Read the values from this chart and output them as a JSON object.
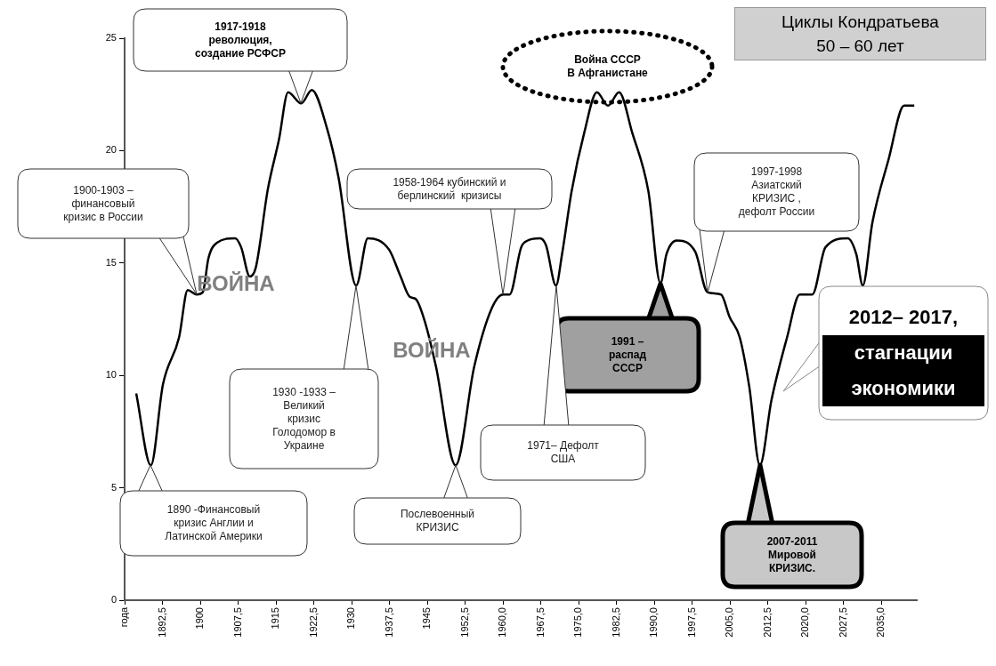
{
  "chart_data": {
    "type": "line",
    "title": "Циклы Кондратьева\n50 – 60 лет",
    "xlim": [
      1885,
      2042
    ],
    "xticks": [
      {
        "value": 1885,
        "label": "года"
      },
      {
        "value": 1892.5,
        "label": "1892,5"
      },
      1900,
      {
        "value": 1907.5,
        "label": "1907,5"
      },
      1915,
      {
        "value": 1922.5,
        "label": "1922,5"
      },
      1930,
      {
        "value": 1937.5,
        "label": "1937,5"
      },
      1945,
      {
        "value": 1952.5,
        "label": "1952,5"
      },
      {
        "value": 1960,
        "label": "1960,0"
      },
      {
        "value": 1967.5,
        "label": "1967,5"
      },
      {
        "value": 1975,
        "label": "1975,0"
      },
      {
        "value": 1982.5,
        "label": "1982,5"
      },
      {
        "value": 1990,
        "label": "1990,0"
      },
      {
        "value": 1997.5,
        "label": "1997,5"
      },
      {
        "value": 2005,
        "label": "2005,0"
      },
      {
        "value": 2012.5,
        "label": "2012,5"
      },
      {
        "value": 2020,
        "label": "2020,0"
      },
      {
        "value": 2027.5,
        "label": "2027,5"
      },
      {
        "value": 2035,
        "label": "2035,0"
      }
    ],
    "ylim": [
      0,
      25
    ],
    "yticks": [
      0,
      5,
      10,
      15,
      20,
      25
    ],
    "grid": false,
    "legend": false,
    "marker": "none",
    "line_style": "solid",
    "series": [
      {
        "color": "#000000",
        "x": [
          1887.3,
          1890.2,
          1892.6,
          1895.8,
          1897.5,
          1899.3,
          1900.5,
          1901.6,
          1903.3,
          1906.9,
          1908.1,
          1909.8,
          1911,
          1913.4,
          1915.6,
          1917.4,
          1920,
          1922.1,
          1925.1,
          1927.4,
          1930.9,
          1933.2,
          1937.4,
          1939.7,
          1941.5,
          1942.7,
          1944.5,
          1946.7,
          1950.6,
          1954.3,
          1957.8,
          1960,
          1961.3,
          1963.6,
          1964.9,
          1967.3,
          1968.5,
          1970.5,
          1971.7,
          1973.6,
          1976.1,
          1978.6,
          1980.8,
          1983,
          1985.6,
          1988.8,
          1991.2,
          1992.4,
          1994.4,
          1998.1,
          2000.5,
          2003.2,
          2004.9,
          2006.9,
          2008.8,
          2010.9,
          2013.2,
          2016.3,
          2018.8,
          2021.3,
          2023.9,
          2028.3,
          2030,
          2031.3,
          2033.2,
          2036.4,
          2039.5,
          2041.5
        ],
        "values": [
          9.2,
          6.0,
          9.6,
          11.7,
          13.8,
          13.6,
          13.7,
          15.2,
          15.9,
          16.1,
          15.7,
          14.4,
          14.8,
          18.3,
          20.5,
          22.6,
          22.1,
          22.7,
          21.0,
          18.8,
          14.0,
          16.1,
          15.6,
          14.4,
          13.5,
          13.4,
          12.4,
          10.4,
          6.0,
          10.4,
          13.0,
          13.6,
          13.6,
          15.7,
          16.0,
          16.1,
          15.8,
          14.0,
          15.4,
          18.2,
          20.8,
          22.6,
          22.0,
          22.6,
          20.8,
          18.2,
          14.1,
          15.4,
          16.0,
          15.5,
          13.7,
          13.6,
          12.6,
          11.7,
          9.5,
          6.0,
          8.9,
          11.7,
          13.6,
          13.6,
          15.7,
          16.1,
          15.4,
          14.0,
          16.8,
          19.6,
          22.0,
          22.0
        ]
      }
    ],
    "annotations": [
      "1900-1903 –\nфинансовый\nкризис в России",
      "1917-1918\nреволюция,\nсоздание РСФСР",
      "Война СССР\nВ Афганистане",
      "1958-1964 кубинский и\nберлинский  кризисы",
      "1997-1998\nАзиатский\nКРИЗИС ,\nдефолт России",
      "ВОЙНА",
      "ВОЙНА",
      "1930 -1933 –\nВеликий\nкризис\nГолодомор в\nУкраине",
      "1991 –\nраспад\nСССР",
      "2012– 2017,\nстагнации\nэкономики",
      "1971– Дефолт\nСША",
      "1890 -Финансовый\nкризис Англии и\nЛатинской Америки",
      "Послевоенный\nКРИЗИС",
      "2007-2011\nМировой\nКРИЗИС."
    ]
  }
}
